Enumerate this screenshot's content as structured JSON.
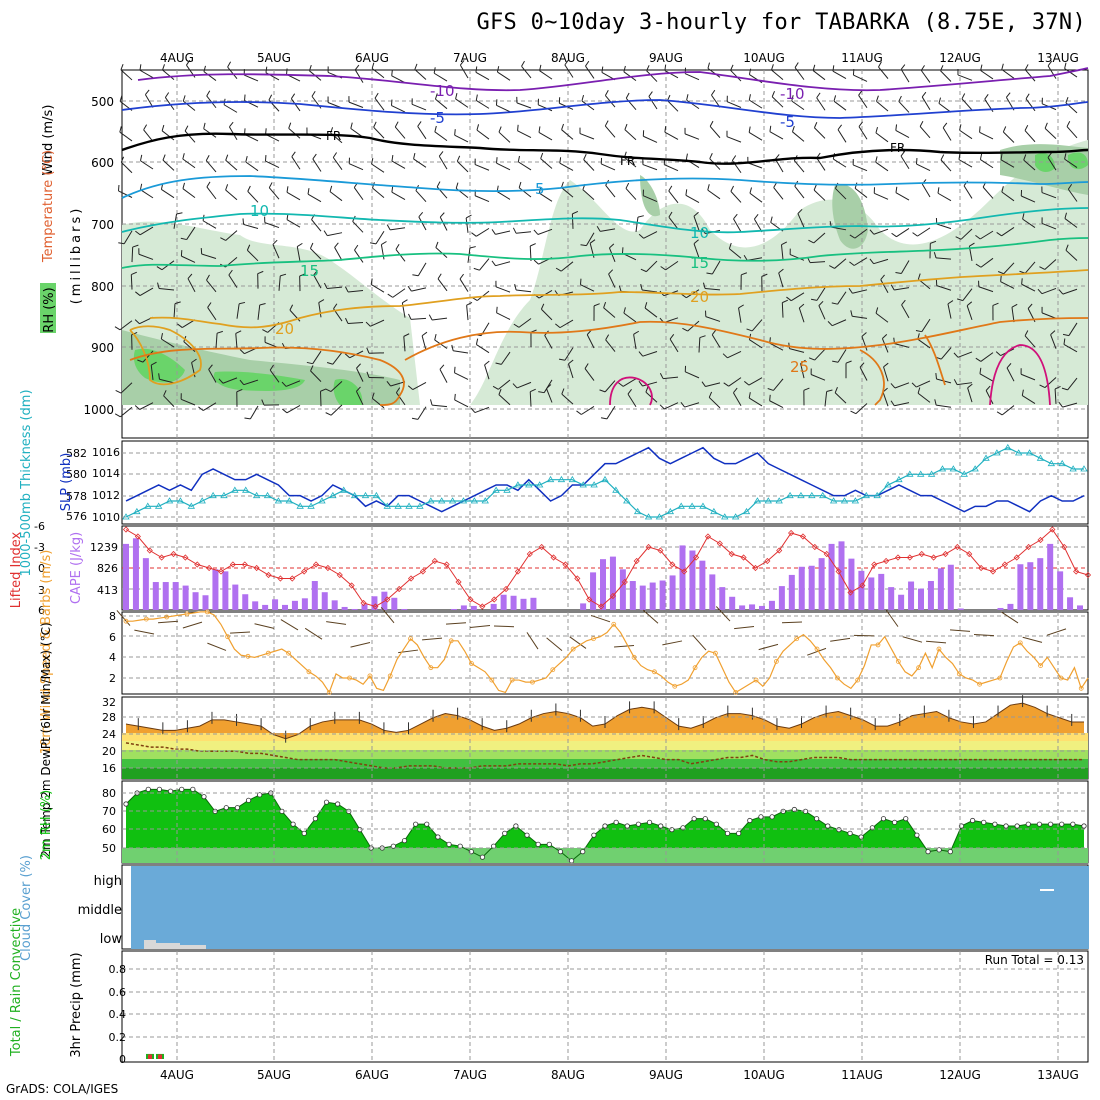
{
  "header": {
    "title": "GFS 0~10day 3-hourly for TABARKA (8.75E, 37N)",
    "credit": "GrADS: COLA/IGES"
  },
  "colors": {
    "t_minus10": "#7a1fb0",
    "t_minus5": "#2040d0",
    "t_freeze": "#000000",
    "t_5": "#1a9ad8",
    "t_10": "#12b8b0",
    "t_15": "#18c080",
    "t_20": "#e0a020",
    "t_25": "#e07818",
    "t_30": "#d0107a",
    "rh_light": "#d6ead6",
    "rh_mid": "#a8cfa8",
    "rh_high": "#6ad46a",
    "slp_line": "#1030c0",
    "thickness_line": "#20b0c0",
    "li_line": "#e03030",
    "cape_bar": "#b070f0",
    "wind10": "#f0a030",
    "temp2m_fill": "#f0a030",
    "dewpt_line": "#804010",
    "rh2m_fill": "#10c010",
    "cloud_fill": "#6aaad8",
    "precip_total": "#20b020",
    "precip_conv": "#e03030"
  },
  "chart_data": [
    {
      "panel": "upper-air",
      "type": "contour",
      "labels": {
        "wind": "Wind (m/s)",
        "temp": "Temperature (°C)",
        "rh": "RH (%)",
        "axis": "(millibars)"
      },
      "yaxis": {
        "ticks": [
          500,
          600,
          700,
          800,
          900,
          1000
        ],
        "range": [
          450,
          1050
        ]
      },
      "contours": [
        {
          "label": "-10",
          "labels_on": [
            "-10",
            "-10"
          ]
        },
        {
          "label": "-5",
          "labels_on": [
            "-5",
            "-5"
          ]
        },
        {
          "label": "FR",
          "labels_on": [
            "FR",
            "FR",
            "FR"
          ]
        },
        {
          "label": "5",
          "labels_on": [
            "5"
          ]
        },
        {
          "label": "10",
          "labels_on": [
            "10",
            "10"
          ]
        },
        {
          "label": "15",
          "labels_on": [
            "15",
            "15"
          ]
        },
        {
          "label": "20",
          "labels_on": [
            "20",
            "20"
          ]
        },
        {
          "label": "25",
          "labels_on": [
            "25"
          ]
        }
      ]
    },
    {
      "panel": "slp-thickness",
      "type": "line",
      "labels": {
        "left": "1000-500mb Thickness (dm)",
        "right": "SLP (mb)"
      },
      "thickness_ticks": [
        576,
        578,
        580,
        582
      ],
      "slp_ticks": [
        1010,
        1012,
        1014,
        1016
      ],
      "slp": [
        1011.5,
        1012.0,
        1012.5,
        1013.0,
        1012.5,
        1013.0,
        1012.5,
        1014.0,
        1014.5,
        1014.0,
        1013.5,
        1013.5,
        1014.0,
        1013.5,
        1013.0,
        1012.0,
        1012.0,
        1011.5,
        1012.0,
        1013.0,
        1012.5,
        1012.0,
        1011.0,
        1011.5,
        1011.0,
        1012.0,
        1012.0,
        1011.5,
        1011.0,
        1010.5,
        1011.0,
        1011.5,
        1012.0,
        1012.5,
        1013.0,
        1013.0,
        1012.5,
        1013.5,
        1012.5,
        1011.5,
        1012.0,
        1013.0,
        1013.0,
        1014.0,
        1015.0,
        1015.0,
        1015.5,
        1016.0,
        1016.5,
        1015.5,
        1015.0,
        1015.5,
        1016.0,
        1016.5,
        1015.5,
        1015.0,
        1015.0,
        1015.5,
        1016.0,
        1015.0,
        1014.5,
        1014.0,
        1013.5,
        1013.0,
        1012.5,
        1012.0,
        1012.0,
        1012.5,
        1012.0,
        1012.0,
        1012.5,
        1013.0,
        1012.5,
        1012.0,
        1012.0,
        1011.5,
        1011.0,
        1010.5,
        1011.0,
        1011.0,
        1011.5,
        1011.5,
        1011.0,
        1010.5,
        1011.5,
        1012.0,
        1011.5,
        1011.5,
        1012.0
      ],
      "thickness": [
        576.0,
        576.5,
        577.0,
        577.0,
        577.5,
        577.5,
        577.0,
        577.5,
        578.0,
        578.0,
        578.5,
        578.5,
        578.0,
        578.0,
        577.5,
        577.5,
        577.0,
        577.0,
        577.5,
        578.0,
        578.5,
        578.0,
        578.0,
        578.0,
        577.0,
        577.0,
        577.0,
        577.0,
        577.5,
        577.5,
        577.5,
        577.5,
        577.5,
        577.5,
        578.5,
        578.5,
        579.0,
        579.0,
        579.0,
        579.5,
        579.5,
        579.5,
        579.0,
        579.0,
        579.5,
        578.5,
        577.5,
        576.5,
        576.0,
        576.0,
        576.5,
        577.0,
        577.0,
        577.0,
        576.5,
        576.0,
        576.0,
        576.5,
        577.5,
        577.5,
        577.5,
        578.0,
        578.0,
        578.0,
        578.0,
        577.5,
        577.5,
        577.5,
        578.0,
        578.0,
        579.0,
        579.5,
        580.0,
        580.0,
        580.0,
        580.5,
        580.5,
        580.0,
        580.5,
        581.5,
        582.0,
        582.5,
        582.0,
        582.0,
        581.5,
        581.0,
        581.0,
        580.5,
        580.5
      ]
    },
    {
      "panel": "cape-li",
      "type": "bar+line",
      "labels": {
        "left": "Lifted Index",
        "right": "CAPE (J/kg)"
      },
      "li_ticks": [
        "-6",
        "-3",
        "0",
        "3",
        "6"
      ],
      "cape_ticks": [
        "1239",
        "826",
        "413"
      ],
      "cape": [
        1300,
        1410,
        1020,
        550,
        550,
        550,
        480,
        350,
        290,
        800,
        760,
        500,
        310,
        170,
        100,
        210,
        100,
        180,
        230,
        570,
        350,
        190,
        60,
        20,
        110,
        270,
        360,
        240,
        20,
        0,
        0,
        0,
        0,
        20,
        90,
        80,
        0,
        120,
        300,
        280,
        220,
        240,
        0,
        0,
        0,
        0,
        130,
        740,
        1000,
        1050,
        800,
        570,
        480,
        540,
        580,
        680,
        1270,
        1170,
        970,
        700,
        450,
        260,
        90,
        110,
        80,
        180,
        470,
        690,
        850,
        870,
        1020,
        1300,
        1350,
        1010,
        770,
        640,
        710,
        450,
        300,
        560,
        420,
        570,
        820,
        890,
        30,
        0,
        0,
        0,
        40,
        120,
        900,
        940,
        1020,
        1300,
        760,
        250,
        90
      ],
      "li": [
        -5.5,
        -4.5,
        -2.5,
        -1.5,
        -2.0,
        -1.5,
        -0.5,
        0.0,
        0.5,
        -0.5,
        -0.5,
        0.0,
        1.0,
        1.5,
        1.5,
        0.5,
        -0.5,
        0.0,
        1.0,
        2.5,
        5.0,
        5.5,
        4.5,
        3.0,
        1.5,
        0.5,
        -1.0,
        -0.5,
        2.0,
        4.5,
        5.5,
        4.5,
        3.0,
        0.5,
        -2.0,
        -3.0,
        -1.5,
        -0.5,
        1.5,
        4.5,
        5.5,
        4.0,
        2.0,
        -1.0,
        -3.0,
        -2.5,
        -0.5,
        0.5,
        -1.5,
        -4.5,
        -3.5,
        -2.0,
        -1.5,
        0.0,
        -1.0,
        -2.5,
        -5.0,
        -4.5,
        -3.0,
        -2.0,
        0.5,
        3.5,
        2.5,
        -0.5,
        -1.0,
        -1.5,
        -1.5,
        -2.0,
        -1.5,
        -2.0,
        -3.0,
        -2.0,
        0.0,
        0.5,
        -0.5,
        -1.5,
        -3.0,
        -4.0,
        -5.5,
        -3.0,
        0.5,
        1.0
      ]
    },
    {
      "panel": "wind10m",
      "type": "line",
      "labels": {
        "left": "10m Wind Speed & Barbs (m/s)"
      },
      "ticks": [
        2,
        4,
        6,
        8
      ],
      "speed": [
        7.5,
        7.5,
        7.6,
        7.7,
        7.7,
        7.8,
        7.9,
        8.0,
        8.1,
        8.2,
        8.3,
        8.4,
        8.4,
        8.1,
        7.2,
        6.0,
        4.8,
        4.2,
        4.1,
        4.0,
        4.2,
        4.4,
        4.6,
        4.8,
        4.4,
        3.8,
        3.2,
        2.6,
        2.2,
        1.6,
        0.6,
        2.4,
        2.0,
        2.0,
        1.8,
        1.4,
        2.2,
        1.0,
        0.8,
        2.2,
        3.8,
        4.8,
        5.8,
        5.2,
        4.0,
        3.0,
        3.0,
        3.8,
        5.6,
        5.6,
        4.6,
        3.4,
        3.0,
        2.6,
        1.8,
        0.8,
        0.6,
        1.8,
        1.8,
        1.6,
        1.6,
        1.8,
        2.0,
        2.8,
        3.4,
        4.0,
        4.8,
        5.2,
        5.6,
        5.8,
        6.0,
        6.4,
        7.2,
        6.4,
        5.2,
        4.0,
        3.2,
        2.8,
        2.6,
        2.2,
        1.6,
        1.2,
        1.4,
        1.8,
        3.0,
        4.0,
        4.6,
        4.4,
        3.0,
        1.6,
        0.6,
        1.0,
        1.4,
        1.8,
        1.2,
        2.0,
        3.6,
        4.6,
        5.2,
        5.8,
        6.2,
        5.6,
        4.8,
        3.8,
        3.0,
        2.0,
        1.4,
        1.0,
        1.8,
        3.2,
        5.2,
        5.2,
        6.0,
        4.8,
        3.6,
        2.6,
        2.2,
        3.0,
        4.4,
        3.0,
        4.8,
        4.0,
        3.4,
        2.4,
        2.0,
        1.8,
        1.4,
        1.6,
        1.8,
        2.0,
        3.6,
        5.0,
        5.4,
        4.6,
        4.0,
        3.2,
        4.0,
        3.0,
        2.0,
        1.8,
        3.0,
        1.0,
        2.0
      ]
    },
    {
      "panel": "temp2m",
      "type": "area",
      "labels": {
        "left": "2m Temp 2m DewPt (6hr Min/Max) (°C)"
      },
      "ticks": [
        16,
        20,
        24,
        28,
        32
      ],
      "temp": [
        26.5,
        26.0,
        25.5,
        25.0,
        25.0,
        25.5,
        26.0,
        27.5,
        27.5,
        27.0,
        26.5,
        26.0,
        24.0,
        23.0,
        24.0,
        26.0,
        27.0,
        27.5,
        27.5,
        27.5,
        26.5,
        25.0,
        24.5,
        25.0,
        26.5,
        28.0,
        29.0,
        28.5,
        27.5,
        26.0,
        25.0,
        25.5,
        26.5,
        28.0,
        29.0,
        29.5,
        29.0,
        28.0,
        26.0,
        26.5,
        28.5,
        30.0,
        30.5,
        30.0,
        28.0,
        26.0,
        25.5,
        26.5,
        28.0,
        29.0,
        29.0,
        28.5,
        27.5,
        26.0,
        25.5,
        26.5,
        28.0,
        29.0,
        29.5,
        28.5,
        27.5,
        26.0,
        26.0,
        27.0,
        28.5,
        29.0,
        29.5,
        28.0,
        27.0,
        26.5,
        27.0,
        29.0,
        31.0,
        31.5,
        30.5,
        29.0,
        28.0,
        27.0,
        27.0
      ],
      "dewpt": [
        22.0,
        21.5,
        21.0,
        21.0,
        20.5,
        20.5,
        20.0,
        20.0,
        20.0,
        20.0,
        19.5,
        19.5,
        19.0,
        18.5,
        18.0,
        18.0,
        18.0,
        18.0,
        17.5,
        17.0,
        16.5,
        16.0,
        16.0,
        16.5,
        16.5,
        16.5,
        16.0,
        16.0,
        16.0,
        16.5,
        16.5,
        16.5,
        17.0,
        17.0,
        17.0,
        17.0,
        16.5,
        17.0,
        17.0,
        17.5,
        18.0,
        18.5,
        19.0,
        18.5,
        18.0,
        18.0,
        17.0,
        17.5,
        18.0,
        18.5,
        18.5,
        19.0,
        18.0,
        17.5,
        17.5,
        18.0,
        18.5,
        18.5,
        18.5,
        18.0,
        18.0,
        18.0,
        18.0,
        18.0,
        18.0,
        18.0,
        18.0,
        18.0,
        18.0,
        18.0,
        18.0,
        18.0,
        18.0,
        18.0,
        18.0,
        18.0,
        18.0,
        18.0,
        18.0
      ]
    },
    {
      "panel": "rh2m",
      "type": "area",
      "labels": {
        "left": "2m RH (%)"
      },
      "ticks": [
        50,
        60,
        70,
        80
      ],
      "rh": [
        74,
        80,
        82,
        82,
        81,
        82,
        82,
        78,
        70,
        72,
        72,
        76,
        79,
        80,
        70,
        63,
        58,
        66,
        75,
        74,
        70,
        60,
        50,
        50,
        51,
        54,
        63,
        63,
        56,
        52,
        51,
        48,
        45,
        51,
        58,
        62,
        57,
        52,
        52,
        48,
        43,
        48,
        57,
        62,
        64,
        62,
        63,
        64,
        62,
        60,
        61,
        66,
        66,
        63,
        58,
        58,
        65,
        67,
        67,
        70,
        71,
        70,
        66,
        62,
        60,
        58,
        56,
        61,
        66,
        64,
        66,
        57,
        48,
        49,
        48,
        62,
        65,
        64,
        63,
        62,
        62,
        63,
        63,
        63,
        63,
        63,
        62
      ]
    },
    {
      "panel": "cloud",
      "type": "area",
      "labels": {
        "left": "Cloud Cover (%)"
      },
      "levels": [
        "high",
        "middle",
        "low"
      ]
    },
    {
      "panel": "precip",
      "type": "bar",
      "labels": {
        "left": "Total / Rain Convective",
        "axis": "3hr Precip (mm)",
        "run_total": "Run Total = 0.13"
      },
      "ticks": [
        "0",
        "0.2",
        "0.4",
        "0.6",
        "0.8"
      ],
      "ylim": [
        0,
        0.95
      ],
      "bars": [
        {
          "t": 0.6,
          "total": 0.045,
          "convective": 0.04
        },
        {
          "t": 1.0,
          "total": 0.045,
          "convective": 0.04
        }
      ]
    }
  ],
  "time_axis": {
    "top_labels": [
      "4AUG",
      "5AUG",
      "6AUG",
      "7AUG",
      "8AUG",
      "9AUG",
      "10AUG",
      "11AUG",
      "12AUG",
      "13AUG"
    ],
    "bottom_labels": [
      "4AUG",
      "5AUG",
      "6AUG",
      "7AUG",
      "8AUG",
      "9AUG",
      "10AUG",
      "11AUG",
      "12AUG",
      "13AUG"
    ]
  }
}
